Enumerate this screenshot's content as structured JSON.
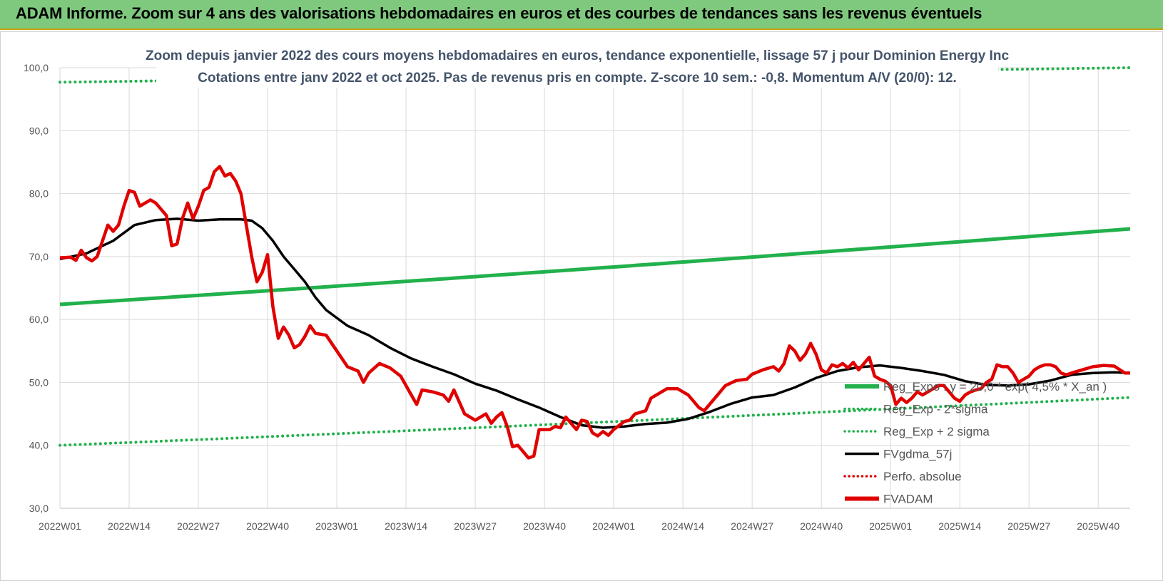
{
  "header": {
    "title": "ADAM Informe. Zoom sur 4 ans des valorisations hebdomadaires en euros et des courbes de tendances sans les revenus éventuels"
  },
  "chart_data": {
    "type": "line",
    "title": "Zoom depuis janvier 2022 des cours moyens hebdomadaires en euros, tendance exponentielle, lissage 57 j pour Dominion Energy Inc",
    "subtitle": "Cotations entre janv 2022 et oct 2025. Pas de revenus pris en compte. Z-score 10 sem.: -0,8. Momentum A/V (20/0): 12.",
    "ylim": [
      30,
      100
    ],
    "yticks": [
      "30,0",
      "40,0",
      "50,0",
      "60,0",
      "70,0",
      "80,0",
      "90,0",
      "100,0"
    ],
    "xticks": [
      "2022W01",
      "2022W14",
      "2022W27",
      "2022W40",
      "2023W01",
      "2023W14",
      "2023W27",
      "2023W40",
      "2024W01",
      "2024W14",
      "2024W27",
      "2024W40",
      "2025W01",
      "2025W14",
      "2025W27",
      "2025W40"
    ],
    "x_range_weeks": [
      0,
      201
    ],
    "grid": true,
    "legend_position": "right",
    "legend": [
      {
        "label": "Reg_Expo : y = 20,0 * exp( 4,5% * X_an )",
        "color": "#22b14c",
        "style": "solid-thick"
      },
      {
        "label": "Reg_Exp - 2*sigma",
        "color": "#22b14c",
        "style": "dotted"
      },
      {
        "label": "Reg_Exp + 2 sigma",
        "color": "#22b14c",
        "style": "dotted"
      },
      {
        "label": "FVgdma_57j",
        "color": "#000000",
        "style": "solid"
      },
      {
        "label": "Perfo. absolue",
        "color": "#e00000",
        "style": "dotted"
      },
      {
        "label": "FVADAM",
        "color": "#e00000",
        "style": "solid-thick"
      }
    ],
    "series": [
      {
        "name": "Reg_Expo",
        "color": "#22b14c",
        "start": 62.4,
        "end": 74.4
      },
      {
        "name": "Reg_Exp - 2*sigma",
        "color": "#22b14c",
        "start": 40.0,
        "end": 47.6
      },
      {
        "name": "Reg_Exp + 2 sigma",
        "color": "#22b14c",
        "start": 97.7,
        "end": 100
      },
      {
        "name": "FVgdma_57j",
        "color": "#000000",
        "points": [
          [
            0,
            69.6
          ],
          [
            5,
            70.5
          ],
          [
            10,
            72.5
          ],
          [
            14,
            75.0
          ],
          [
            18,
            75.8
          ],
          [
            22,
            76.0
          ],
          [
            26,
            75.7
          ],
          [
            30,
            75.9
          ],
          [
            34,
            75.9
          ],
          [
            36,
            75.7
          ],
          [
            38,
            74.5
          ],
          [
            40,
            72.5
          ],
          [
            42,
            70.0
          ],
          [
            44,
            68.0
          ],
          [
            46,
            66.0
          ],
          [
            48,
            63.5
          ],
          [
            50,
            61.5
          ],
          [
            54,
            59.0
          ],
          [
            58,
            57.5
          ],
          [
            62,
            55.5
          ],
          [
            66,
            53.8
          ],
          [
            70,
            52.5
          ],
          [
            74,
            51.3
          ],
          [
            78,
            49.8
          ],
          [
            82,
            48.7
          ],
          [
            86,
            47.3
          ],
          [
            90,
            46.0
          ],
          [
            94,
            44.5
          ],
          [
            98,
            43.2
          ],
          [
            102,
            42.8
          ],
          [
            106,
            43.0
          ],
          [
            110,
            43.4
          ],
          [
            114,
            43.6
          ],
          [
            118,
            44.2
          ],
          [
            122,
            45.3
          ],
          [
            126,
            46.6
          ],
          [
            130,
            47.6
          ],
          [
            134,
            48.0
          ],
          [
            138,
            49.2
          ],
          [
            142,
            50.7
          ],
          [
            146,
            51.8
          ],
          [
            150,
            52.4
          ],
          [
            154,
            52.7
          ],
          [
            158,
            52.3
          ],
          [
            162,
            51.8
          ],
          [
            166,
            51.2
          ],
          [
            170,
            50.2
          ],
          [
            174,
            49.6
          ],
          [
            178,
            49.5
          ],
          [
            182,
            49.7
          ],
          [
            186,
            50.3
          ],
          [
            190,
            51.2
          ],
          [
            194,
            51.5
          ],
          [
            198,
            51.6
          ],
          [
            201,
            51.5
          ]
        ]
      },
      {
        "name": "FVADAM",
        "color": "#e00000",
        "points": [
          [
            0,
            69.8
          ],
          [
            2,
            69.9
          ],
          [
            3,
            69.4
          ],
          [
            4,
            71.0
          ],
          [
            5,
            69.8
          ],
          [
            6,
            69.3
          ],
          [
            7,
            70.0
          ],
          [
            9,
            75.0
          ],
          [
            10,
            74.0
          ],
          [
            11,
            75.0
          ],
          [
            12,
            78.0
          ],
          [
            13,
            80.5
          ],
          [
            14,
            80.2
          ],
          [
            15,
            78.0
          ],
          [
            16,
            78.5
          ],
          [
            17,
            79.0
          ],
          [
            18,
            78.5
          ],
          [
            19,
            77.5
          ],
          [
            20,
            76.5
          ],
          [
            21,
            71.7
          ],
          [
            22,
            72.0
          ],
          [
            23,
            76.0
          ],
          [
            24,
            78.5
          ],
          [
            25,
            76.0
          ],
          [
            26,
            78.0
          ],
          [
            27,
            80.5
          ],
          [
            28,
            81.0
          ],
          [
            29,
            83.5
          ],
          [
            30,
            84.3
          ],
          [
            31,
            82.8
          ],
          [
            32,
            83.2
          ],
          [
            33,
            82.0
          ],
          [
            34,
            80.0
          ],
          [
            35,
            75.0
          ],
          [
            36,
            70.0
          ],
          [
            37,
            66.0
          ],
          [
            38,
            67.5
          ],
          [
            39,
            70.3
          ],
          [
            40,
            62.0
          ],
          [
            41,
            57.0
          ],
          [
            42,
            58.8
          ],
          [
            43,
            57.5
          ],
          [
            44,
            55.5
          ],
          [
            45,
            56.0
          ],
          [
            46,
            57.3
          ],
          [
            47,
            59.0
          ],
          [
            48,
            57.8
          ],
          [
            50,
            57.5
          ],
          [
            52,
            55.0
          ],
          [
            54,
            52.5
          ],
          [
            56,
            51.8
          ],
          [
            57,
            50.0
          ],
          [
            58,
            51.5
          ],
          [
            60,
            53.0
          ],
          [
            62,
            52.3
          ],
          [
            64,
            51.0
          ],
          [
            66,
            48.0
          ],
          [
            67,
            46.5
          ],
          [
            68,
            48.8
          ],
          [
            70,
            48.5
          ],
          [
            72,
            48.0
          ],
          [
            73,
            47.0
          ],
          [
            74,
            48.8
          ],
          [
            76,
            45.0
          ],
          [
            78,
            44.0
          ],
          [
            80,
            45.0
          ],
          [
            81,
            43.5
          ],
          [
            82,
            44.5
          ],
          [
            83,
            45.2
          ],
          [
            84,
            43.0
          ],
          [
            85,
            39.8
          ],
          [
            86,
            40.0
          ],
          [
            88,
            38.0
          ],
          [
            89,
            38.3
          ],
          [
            90,
            42.5
          ],
          [
            92,
            42.5
          ],
          [
            93,
            43.0
          ],
          [
            94,
            42.8
          ],
          [
            95,
            44.5
          ],
          [
            96,
            43.5
          ],
          [
            97,
            42.5
          ],
          [
            98,
            44.0
          ],
          [
            99,
            43.8
          ],
          [
            100,
            42.0
          ],
          [
            101,
            41.5
          ],
          [
            102,
            42.2
          ],
          [
            103,
            41.6
          ],
          [
            104,
            42.5
          ],
          [
            106,
            43.8
          ],
          [
            107,
            44.0
          ],
          [
            108,
            45.0
          ],
          [
            110,
            45.5
          ],
          [
            111,
            47.5
          ],
          [
            113,
            48.5
          ],
          [
            114,
            49.0
          ],
          [
            116,
            49.0
          ],
          [
            118,
            48.0
          ],
          [
            120,
            46.0
          ],
          [
            121,
            45.5
          ],
          [
            123,
            47.5
          ],
          [
            125,
            49.5
          ],
          [
            127,
            50.3
          ],
          [
            129,
            50.5
          ],
          [
            130,
            51.3
          ],
          [
            132,
            52.0
          ],
          [
            134,
            52.5
          ],
          [
            135,
            51.8
          ],
          [
            136,
            53.0
          ],
          [
            137,
            55.8
          ],
          [
            138,
            55.0
          ],
          [
            139,
            53.5
          ],
          [
            140,
            54.5
          ],
          [
            141,
            56.2
          ],
          [
            142,
            54.5
          ],
          [
            143,
            52.0
          ],
          [
            144,
            51.5
          ],
          [
            145,
            52.8
          ],
          [
            146,
            52.5
          ],
          [
            147,
            53.0
          ],
          [
            148,
            52.3
          ],
          [
            149,
            53.2
          ],
          [
            150,
            52.0
          ],
          [
            151,
            53.0
          ],
          [
            152,
            54.0
          ],
          [
            153,
            51.0
          ],
          [
            154,
            50.5
          ],
          [
            155,
            50.2
          ],
          [
            156,
            49.5
          ],
          [
            157,
            46.5
          ],
          [
            158,
            47.5
          ],
          [
            159,
            46.8
          ],
          [
            160,
            47.5
          ],
          [
            161,
            48.5
          ],
          [
            162,
            48.0
          ],
          [
            163,
            48.5
          ],
          [
            164,
            49.0
          ],
          [
            165,
            49.5
          ],
          [
            166,
            49.5
          ],
          [
            167,
            48.5
          ],
          [
            168,
            47.5
          ],
          [
            169,
            47.0
          ],
          [
            170,
            48.0
          ],
          [
            171,
            48.5
          ],
          [
            172,
            48.8
          ],
          [
            173,
            49.0
          ],
          [
            174,
            50.0
          ],
          [
            175,
            50.5
          ],
          [
            176,
            52.8
          ],
          [
            177,
            52.5
          ],
          [
            178,
            52.5
          ],
          [
            179,
            51.5
          ],
          [
            180,
            50.0
          ],
          [
            181,
            50.5
          ],
          [
            182,
            51.0
          ],
          [
            183,
            52.0
          ],
          [
            184,
            52.5
          ],
          [
            185,
            52.8
          ],
          [
            186,
            52.8
          ],
          [
            187,
            52.5
          ],
          [
            188,
            51.5
          ],
          [
            189,
            51.2
          ],
          [
            190,
            51.5
          ],
          [
            192,
            52.0
          ],
          [
            194,
            52.5
          ],
          [
            196,
            52.7
          ],
          [
            198,
            52.6
          ],
          [
            200,
            51.5
          ],
          [
            201,
            51.5
          ]
        ]
      }
    ]
  }
}
